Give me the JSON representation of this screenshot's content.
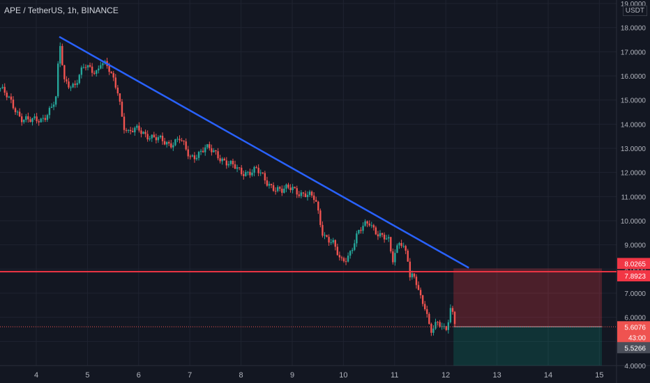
{
  "header": {
    "symbol_title": "APE / TetherUS, 1h, BINANCE",
    "currency": "USDT"
  },
  "colors": {
    "background": "#131722",
    "grid": "#1f2330",
    "up": "#26a69a",
    "down": "#ef5350",
    "trendline": "#2962ff",
    "horizontal": "#f23645",
    "stop_zone": "rgba(242,54,69,0.25)",
    "target_zone": "rgba(8,153,129,0.22)",
    "axis_text": "#b2b5be"
  },
  "chart_data": {
    "type": "candlestick",
    "title": "APE / TetherUS, 1h, BINANCE",
    "ylim": [
      4.0,
      19.0
    ],
    "y_ticks": [
      "4.0000",
      "5.0000",
      "6.0000",
      "7.0000",
      "8.0000",
      "9.0000",
      "10.0000",
      "11.0000",
      "12.0000",
      "13.0000",
      "14.0000",
      "15.0000",
      "16.0000",
      "17.0000",
      "18.0000",
      "19.0000"
    ],
    "x_ticks": [
      "4",
      "5",
      "6",
      "7",
      "8",
      "9",
      "10",
      "11",
      "12",
      "13",
      "14",
      "15"
    ],
    "price_labels": {
      "upper": "8.0265",
      "line": "7.8923",
      "current": "5.6076",
      "countdown": "43:00",
      "target": "5.5266"
    },
    "trendline": {
      "from": [
        4.45,
        17.62
      ],
      "to": [
        12.45,
        8.05
      ]
    },
    "horizontal_level": 7.8923,
    "position": {
      "start_day": 12.15,
      "end_day": 15.05,
      "entry": 5.6076,
      "stop": 8.0265,
      "target": 4.0
    },
    "close_path": [
      [
        3.3,
        15.5
      ],
      [
        3.5,
        14.9
      ],
      [
        3.7,
        14.3
      ],
      [
        3.9,
        14.1
      ],
      [
        4.1,
        14.2
      ],
      [
        4.3,
        14.7
      ],
      [
        4.4,
        15.1
      ],
      [
        4.45,
        17.5
      ],
      [
        4.55,
        15.8
      ],
      [
        4.75,
        15.6
      ],
      [
        4.95,
        16.4
      ],
      [
        5.2,
        16.2
      ],
      [
        5.25,
        16.6
      ],
      [
        5.4,
        16.3
      ],
      [
        5.6,
        15.4
      ],
      [
        5.7,
        14.0
      ],
      [
        5.8,
        13.6
      ],
      [
        6.0,
        13.8
      ],
      [
        6.3,
        13.4
      ],
      [
        6.6,
        13.2
      ],
      [
        6.8,
        13.4
      ],
      [
        7.0,
        12.6
      ],
      [
        7.3,
        13.0
      ],
      [
        7.5,
        12.8
      ],
      [
        7.8,
        12.3
      ],
      [
        8.0,
        12.0
      ],
      [
        8.3,
        12.1
      ],
      [
        8.5,
        11.6
      ],
      [
        8.8,
        11.2
      ],
      [
        9.0,
        11.4
      ],
      [
        9.2,
        11.1
      ],
      [
        9.45,
        10.9
      ],
      [
        9.6,
        9.5
      ],
      [
        9.8,
        9.0
      ],
      [
        9.95,
        8.3
      ],
      [
        10.1,
        8.6
      ],
      [
        10.3,
        9.5
      ],
      [
        10.5,
        10.0
      ],
      [
        10.7,
        9.4
      ],
      [
        10.9,
        9.1
      ],
      [
        10.95,
        8.3
      ],
      [
        11.1,
        9.3
      ],
      [
        11.25,
        8.5
      ],
      [
        11.3,
        7.6
      ],
      [
        11.4,
        7.6
      ],
      [
        11.5,
        6.9
      ],
      [
        11.6,
        6.5
      ],
      [
        11.7,
        5.4
      ],
      [
        11.85,
        5.7
      ],
      [
        12.0,
        5.5
      ],
      [
        12.1,
        6.5
      ],
      [
        12.2,
        5.6076
      ]
    ],
    "grid": true
  }
}
